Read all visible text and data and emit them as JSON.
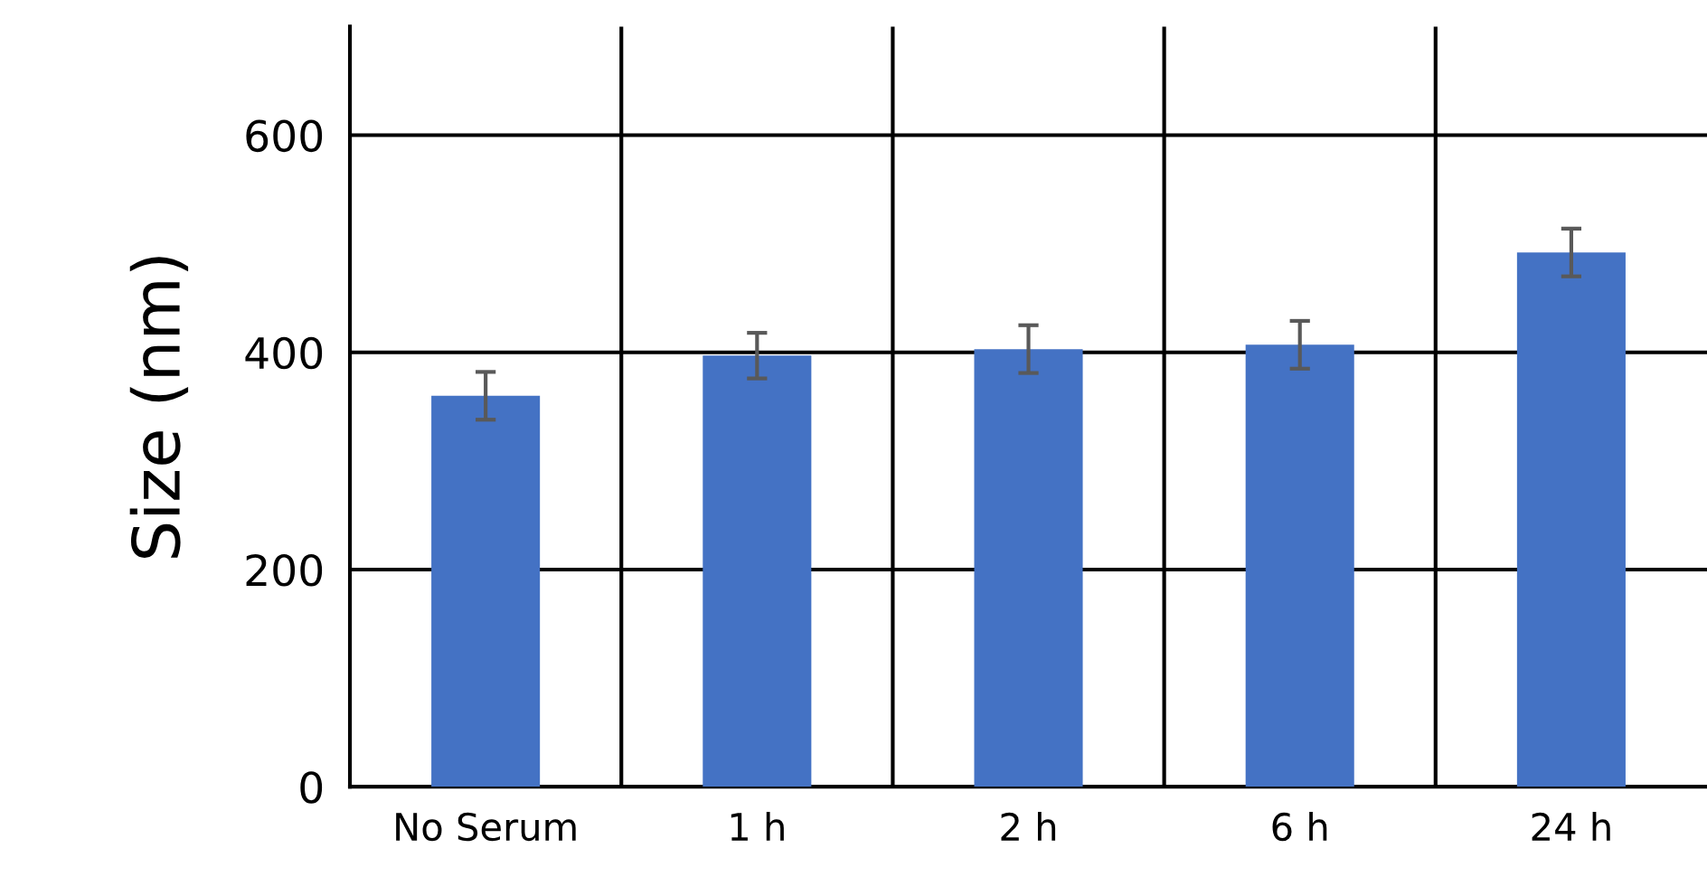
{
  "chart_data": {
    "type": "bar",
    "ylabel": "Size (nm)",
    "categories": [
      "No Serum",
      "1 h",
      "2 h",
      "6 h",
      "24 h"
    ],
    "values": [
      360,
      397,
      403,
      407,
      492
    ],
    "errors": [
      22,
      21,
      22,
      22,
      22
    ],
    "color": "#4472c4",
    "ylim": [
      0,
      700
    ],
    "yticks": [
      0,
      200,
      400,
      600
    ],
    "grid": true
  }
}
